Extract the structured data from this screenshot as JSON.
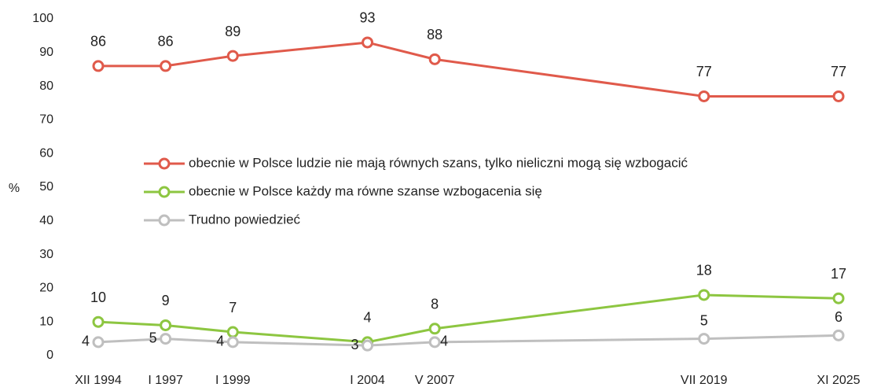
{
  "chart_data": {
    "type": "line",
    "y_label": "%",
    "categories": [
      "XII 1994",
      "I 1997",
      "I 1999",
      "I 2004",
      "V 2007",
      "VII 2019",
      "XI 2025"
    ],
    "series": [
      {
        "name": "obecnie w Polsce ludzie nie mają równych szans, tylko nieliczni mogą się wzbogacić",
        "color": "#e05a4b",
        "values": [
          86,
          86,
          89,
          93,
          88,
          77,
          77
        ]
      },
      {
        "name": "obecnie w Polsce każdy ma równe szanse wzbogacenia się",
        "color": "#8dc641",
        "values": [
          10,
          9,
          7,
          4,
          8,
          18,
          17
        ]
      },
      {
        "name": "Trudno powiedzieć",
        "color": "#bfbfbf",
        "values": [
          4,
          5,
          4,
          3,
          4,
          5,
          6
        ]
      }
    ],
    "ylim": [
      0,
      100
    ],
    "yticks": [
      0,
      10,
      20,
      30,
      40,
      50,
      60,
      70,
      80,
      90,
      100
    ],
    "grid": false
  }
}
